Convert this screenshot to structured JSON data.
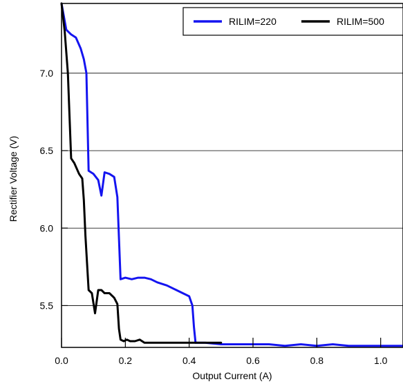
{
  "chart_data": {
    "type": "line",
    "title": "",
    "xlabel": "Output Current (A)",
    "ylabel": "Rectifier Voltage (V)",
    "xlim": [
      0.0,
      1.07
    ],
    "ylim": [
      5.23,
      7.45
    ],
    "x_ticks": [
      0.0,
      0.2,
      0.4,
      0.6,
      0.8,
      1.0
    ],
    "x_tick_labels": [
      "0.0",
      "0.2",
      "0.4",
      "0.6",
      "0.8",
      "1.0"
    ],
    "y_ticks": [
      5.5,
      6.0,
      6.5,
      7.0
    ],
    "y_tick_labels": [
      "5.5",
      "6.0",
      "6.5",
      "7.0"
    ],
    "grid": "horizontal",
    "legend_position": "top-right",
    "series": [
      {
        "name": "RILIM=220",
        "color": "#1414f0",
        "x": [
          0.0,
          0.015,
          0.03,
          0.045,
          0.06,
          0.07,
          0.078,
          0.085,
          0.1,
          0.115,
          0.125,
          0.135,
          0.15,
          0.165,
          0.175,
          0.185,
          0.2,
          0.22,
          0.24,
          0.26,
          0.28,
          0.3,
          0.33,
          0.36,
          0.38,
          0.4,
          0.41,
          0.415,
          0.42,
          0.45,
          0.5,
          0.55,
          0.6,
          0.65,
          0.7,
          0.75,
          0.8,
          0.85,
          0.9,
          0.95,
          1.0,
          1.03,
          1.07
        ],
        "y": [
          7.45,
          7.28,
          7.25,
          7.23,
          7.16,
          7.09,
          7.0,
          6.37,
          6.35,
          6.31,
          6.21,
          6.36,
          6.35,
          6.33,
          6.2,
          5.67,
          5.68,
          5.67,
          5.68,
          5.68,
          5.67,
          5.65,
          5.63,
          5.6,
          5.58,
          5.56,
          5.5,
          5.36,
          5.26,
          5.26,
          5.25,
          5.25,
          5.25,
          5.25,
          5.24,
          5.25,
          5.24,
          5.25,
          5.24,
          5.24,
          5.24,
          5.24,
          5.24
        ]
      },
      {
        "name": "RILIM=500",
        "color": "#000000",
        "x": [
          0.0,
          0.01,
          0.02,
          0.03,
          0.04,
          0.055,
          0.065,
          0.07,
          0.075,
          0.085,
          0.095,
          0.105,
          0.115,
          0.125,
          0.135,
          0.15,
          0.165,
          0.175,
          0.18,
          0.185,
          0.195,
          0.205,
          0.215,
          0.23,
          0.245,
          0.26,
          0.3,
          0.35,
          0.4,
          0.45,
          0.5
        ],
        "y": [
          7.45,
          7.27,
          7.0,
          6.45,
          6.42,
          6.35,
          6.32,
          6.18,
          5.95,
          5.6,
          5.58,
          5.45,
          5.6,
          5.6,
          5.58,
          5.58,
          5.55,
          5.51,
          5.35,
          5.28,
          5.27,
          5.28,
          5.27,
          5.27,
          5.28,
          5.26,
          5.26,
          5.26,
          5.26,
          5.26,
          5.26
        ]
      }
    ]
  }
}
